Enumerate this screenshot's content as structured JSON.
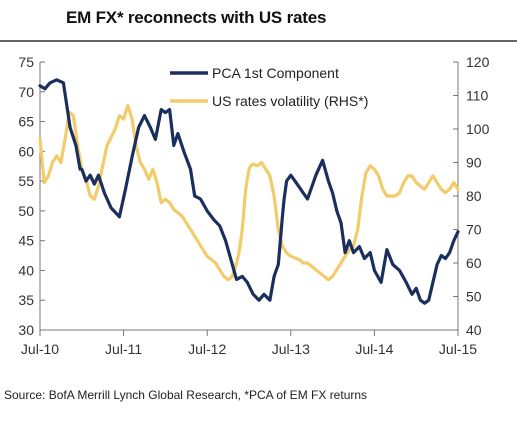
{
  "title": "EM FX* reconnects with US rates",
  "source": "Source: BofA Merrill Lynch Global Research, *PCA of EM FX returns",
  "colors": {
    "pca": "#1b2f5e",
    "us_rates": "#f2cb6a",
    "axis": "#777777"
  },
  "chart_data": {
    "type": "line",
    "legend_position": "top-center",
    "grid": false,
    "x_ticks": [
      "Jul-10",
      "Jul-11",
      "Jul-12",
      "Jul-13",
      "Jul-14",
      "Jul-15"
    ],
    "xlim": [
      2010.5,
      2015.5
    ],
    "y_left": {
      "ticks": [
        30,
        35,
        40,
        45,
        50,
        55,
        60,
        65,
        70,
        75
      ],
      "lim": [
        30,
        75
      ]
    },
    "y_right": {
      "ticks": [
        40,
        50,
        60,
        70,
        80,
        90,
        100,
        110,
        120
      ],
      "lim": [
        40,
        120
      ]
    },
    "series": [
      {
        "name": "PCA 1st Component",
        "axis": "left",
        "x": [
          2010.5,
          2010.56,
          2010.62,
          2010.7,
          2010.78,
          2010.86,
          2010.93,
          2010.98,
          2011.0,
          2011.05,
          2011.1,
          2011.15,
          2011.2,
          2011.27,
          2011.35,
          2011.45,
          2011.52,
          2011.6,
          2011.68,
          2011.75,
          2011.82,
          2011.88,
          2011.95,
          2012.0,
          2012.05,
          2012.1,
          2012.15,
          2012.22,
          2012.3,
          2012.35,
          2012.42,
          2012.5,
          2012.58,
          2012.65,
          2012.72,
          2012.78,
          2012.85,
          2012.92,
          2012.98,
          2013.05,
          2013.12,
          2013.18,
          2013.25,
          2013.3,
          2013.35,
          2013.4,
          2013.42,
          2013.45,
          2013.5,
          2013.55,
          2013.6,
          2013.65,
          2013.7,
          2013.75,
          2013.8,
          2013.88,
          2013.95,
          2014.0,
          2014.05,
          2014.1,
          2014.15,
          2014.2,
          2014.25,
          2014.32,
          2014.38,
          2014.45,
          2014.5,
          2014.58,
          2014.65,
          2014.72,
          2014.8,
          2014.88,
          2014.95,
          2015.0,
          2015.05,
          2015.1,
          2015.15,
          2015.2,
          2015.25,
          2015.3,
          2015.35,
          2015.4,
          2015.45,
          2015.5
        ],
        "values": [
          71,
          70.5,
          71.5,
          72,
          71.5,
          64,
          61,
          57,
          57,
          55,
          56,
          54.5,
          56,
          53,
          50.5,
          49,
          53.5,
          59,
          64,
          66,
          64,
          62,
          67,
          66.5,
          67,
          61,
          63,
          60,
          57,
          52.5,
          52,
          50,
          48.5,
          47.5,
          45,
          42,
          38.5,
          39,
          38,
          36,
          35,
          36,
          35,
          39,
          41,
          49,
          52,
          55,
          56,
          55,
          54,
          53,
          52,
          54,
          56,
          58.5,
          55,
          53,
          50,
          48,
          43,
          45,
          43,
          44,
          42,
          43,
          40,
          38,
          43.5,
          41,
          40,
          38,
          36,
          37,
          35,
          34.5,
          35,
          38,
          41,
          42.5,
          42,
          43,
          45,
          46.5
        ]
      },
      {
        "name": "US rates volatility (RHS*)",
        "axis": "right",
        "x": [
          2010.5,
          2010.55,
          2010.6,
          2010.65,
          2010.7,
          2010.75,
          2010.8,
          2010.85,
          2010.9,
          2010.95,
          2011.0,
          2011.05,
          2011.1,
          2011.15,
          2011.2,
          2011.3,
          2011.4,
          2011.45,
          2011.5,
          2011.55,
          2011.6,
          2011.65,
          2011.7,
          2011.75,
          2011.8,
          2011.85,
          2011.9,
          2011.95,
          2012.0,
          2012.05,
          2012.1,
          2012.15,
          2012.2,
          2012.25,
          2012.3,
          2012.35,
          2012.4,
          2012.45,
          2012.5,
          2012.55,
          2012.6,
          2012.65,
          2012.7,
          2012.75,
          2012.8,
          2012.85,
          2012.88,
          2012.92,
          2012.96,
          2013.0,
          2013.02,
          2013.05,
          2013.1,
          2013.15,
          2013.2,
          2013.25,
          2013.3,
          2013.35,
          2013.4,
          2013.45,
          2013.5,
          2013.55,
          2013.6,
          2013.65,
          2013.7,
          2013.75,
          2013.8,
          2013.85,
          2013.9,
          2013.95,
          2014.0,
          2014.05,
          2014.1,
          2014.15,
          2014.2,
          2014.25,
          2014.3,
          2014.35,
          2014.4,
          2014.45,
          2014.5,
          2014.55,
          2014.6,
          2014.65,
          2014.7,
          2014.75,
          2014.8,
          2014.85,
          2014.9,
          2014.95,
          2015.0,
          2015.05,
          2015.1,
          2015.15,
          2015.2,
          2015.25,
          2015.3,
          2015.35,
          2015.4,
          2015.45,
          2015.5
        ],
        "values": [
          97,
          84,
          86,
          90,
          92,
          90,
          97,
          105,
          104,
          95,
          88,
          85,
          80,
          79,
          83,
          95,
          100,
          104,
          103,
          107,
          103,
          95,
          90,
          88,
          85,
          88,
          84,
          78,
          79,
          78,
          76,
          75,
          74,
          72,
          70,
          68,
          66,
          64,
          62,
          61,
          60,
          58,
          56,
          55,
          56,
          60,
          63,
          70,
          82,
          88,
          89,
          89.5,
          89,
          90,
          88,
          86,
          80,
          70,
          65,
          63,
          62,
          61.5,
          61,
          60,
          60,
          59,
          58,
          57,
          56,
          55,
          56,
          58,
          60,
          62,
          64,
          65,
          70,
          80,
          87,
          89,
          88,
          86,
          82,
          80,
          80,
          80,
          81,
          84,
          86,
          86,
          84,
          83,
          82,
          84,
          86,
          84,
          82,
          81,
          82,
          84,
          82
        ]
      }
    ]
  }
}
